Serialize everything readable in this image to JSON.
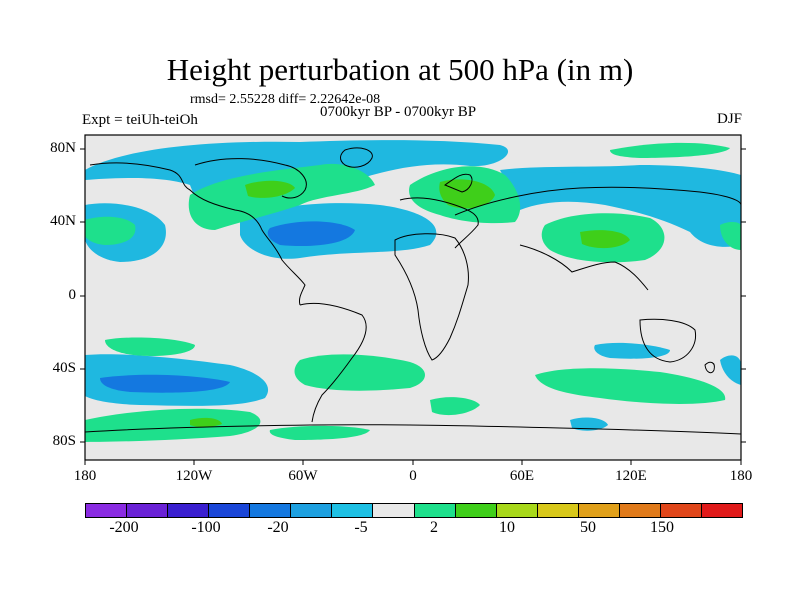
{
  "figure": {
    "title": "Height perturbation at 500 hPa (in m)",
    "subtitle": "rmsd= 2.55228 diff= 2.22642e-08",
    "period": "0700kyr BP - 0700kyr BP",
    "experiment": "Expt = teiUh-teiOh",
    "season": "DJF"
  },
  "map": {
    "projection": "cylindrical equidistant",
    "longitude_range": [
      -180,
      180
    ],
    "latitude_range": [
      -90,
      90
    ],
    "background_color": "#e8e8e8",
    "y_ticks": [
      "80N",
      "40N",
      "0",
      "40S",
      "80S"
    ],
    "x_ticks": [
      "180",
      "120W",
      "60W",
      "0",
      "60E",
      "120E",
      "180"
    ]
  },
  "colorbar": {
    "colors": [
      "#8a2be2",
      "#6a22d6",
      "#3a1fd0",
      "#1a46d8",
      "#1478e0",
      "#1da0e0",
      "#1ec0e4",
      "#e8e8e8",
      "#1ee08c",
      "#3fcf1a",
      "#a8d81a",
      "#d8c81a",
      "#e0a01a",
      "#e07a1a",
      "#e0461a",
      "#e01a1a"
    ],
    "labels": [
      "-200",
      "-100",
      "-20",
      "-5",
      "2",
      "10",
      "50",
      "150"
    ]
  }
}
